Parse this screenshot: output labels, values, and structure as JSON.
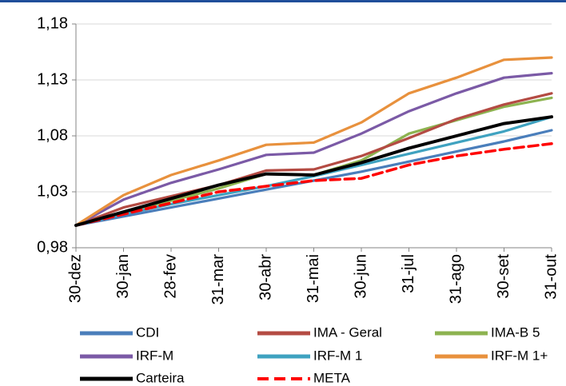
{
  "chart_data": {
    "type": "line",
    "title": "",
    "xlabel": "",
    "ylabel": "",
    "ylim": [
      0.98,
      1.18
    ],
    "yticks": [
      "0,98",
      "1,03",
      "1,08",
      "1,13",
      "1,18"
    ],
    "ytick_values": [
      0.98,
      1.03,
      1.08,
      1.13,
      1.18
    ],
    "x": [
      "30-dez",
      "30-jan",
      "28-fev",
      "31-mar",
      "30-abr",
      "31-mai",
      "30-jun",
      "31-jul",
      "31-ago",
      "30-set",
      "31-out"
    ],
    "grid": "horizontal",
    "legend_position": "bottom",
    "series": [
      {
        "name": "CDI",
        "color": "#4a7ebb",
        "dash": false,
        "values": [
          1.0,
          1.008,
          1.016,
          1.024,
          1.032,
          1.04,
          1.048,
          1.057,
          1.066,
          1.075,
          1.085
        ]
      },
      {
        "name": "IMA - Geral",
        "color": "#b44b43",
        "dash": false,
        "values": [
          1.0,
          1.016,
          1.026,
          1.036,
          1.049,
          1.05,
          1.062,
          1.078,
          1.095,
          1.108,
          1.118
        ]
      },
      {
        "name": "IMA-B 5",
        "color": "#8db350",
        "dash": false,
        "values": [
          1.0,
          1.012,
          1.022,
          1.033,
          1.046,
          1.045,
          1.058,
          1.082,
          1.094,
          1.106,
          1.114
        ]
      },
      {
        "name": "IRF-M",
        "color": "#7b5aa6",
        "dash": false,
        "values": [
          1.0,
          1.023,
          1.038,
          1.05,
          1.063,
          1.065,
          1.082,
          1.102,
          1.118,
          1.132,
          1.136
        ]
      },
      {
        "name": "IRF-M 1",
        "color": "#3fa2c0",
        "dash": false,
        "values": [
          1.0,
          1.01,
          1.019,
          1.027,
          1.035,
          1.044,
          1.054,
          1.064,
          1.074,
          1.084,
          1.097
        ]
      },
      {
        "name": "IRF-M 1+",
        "color": "#e8913d",
        "dash": false,
        "values": [
          1.0,
          1.027,
          1.045,
          1.058,
          1.072,
          1.074,
          1.092,
          1.118,
          1.132,
          1.148,
          1.15
        ]
      },
      {
        "name": "Carteira",
        "color": "#000000",
        "dash": false,
        "values": [
          1.0,
          1.012,
          1.024,
          1.036,
          1.046,
          1.045,
          1.056,
          1.069,
          1.08,
          1.091,
          1.097
        ]
      },
      {
        "name": "META",
        "color": "#ff0000",
        "dash": true,
        "values": [
          1.0,
          1.01,
          1.02,
          1.03,
          1.035,
          1.04,
          1.042,
          1.054,
          1.062,
          1.068,
          1.073
        ]
      }
    ]
  }
}
